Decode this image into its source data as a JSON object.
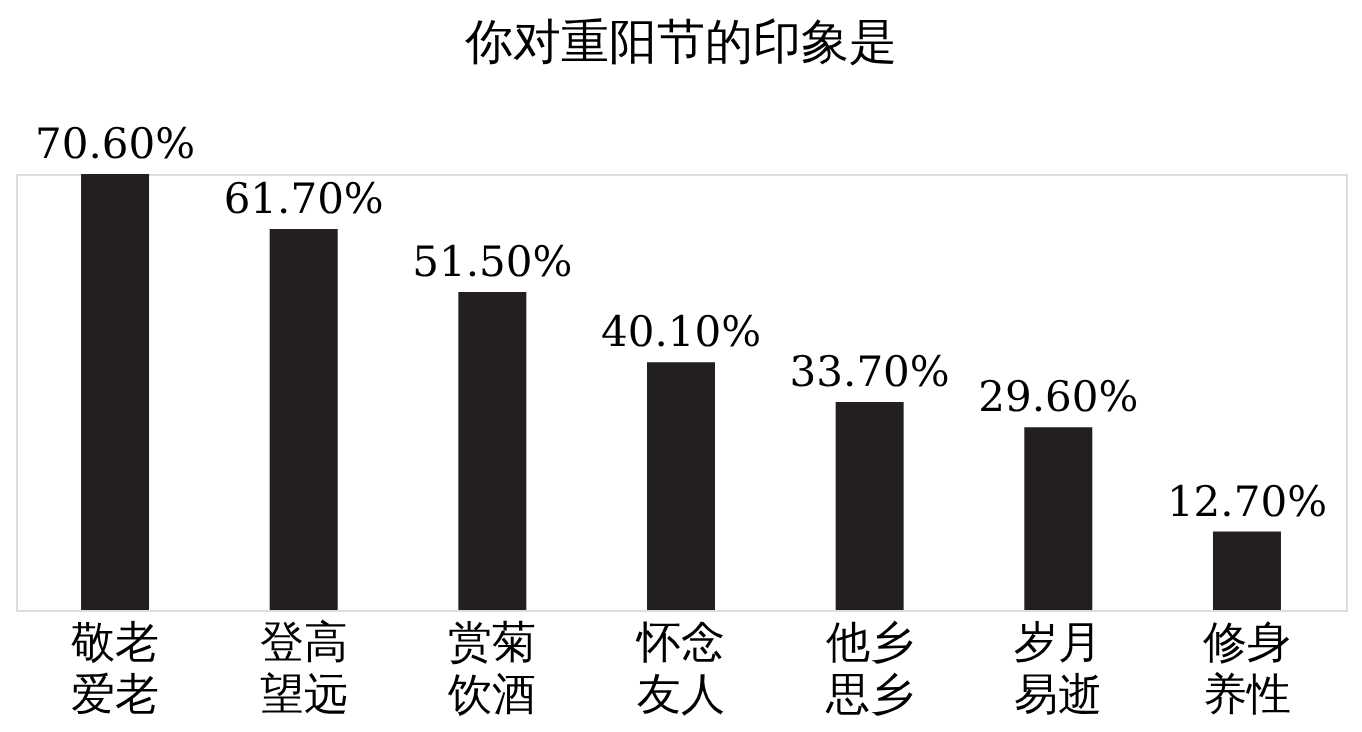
{
  "chart_data": {
    "type": "bar",
    "title": "你对重阳节的印象是",
    "categories": [
      "敬老爱老",
      "登高望远",
      "赏菊饮酒",
      "怀念友人",
      "他乡思乡",
      "岁月易逝",
      "修身养性"
    ],
    "values": [
      70.6,
      61.7,
      51.5,
      40.1,
      33.7,
      29.6,
      12.7
    ],
    "value_labels": [
      "70.60%",
      "61.70%",
      "51.50%",
      "40.10%",
      "33.70%",
      "29.60%",
      "12.70%"
    ],
    "color": "#231f20",
    "grid": false
  }
}
